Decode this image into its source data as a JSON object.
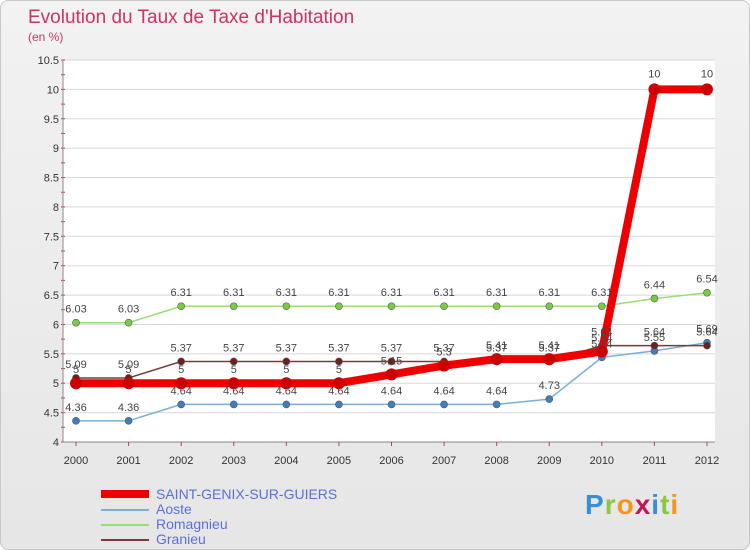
{
  "title": "Evolution du Taux de Taxe d'Habitation",
  "unit_label": "(en %)",
  "chart_data": {
    "type": "line",
    "title": "Evolution du Taux de Taxe d'Habitation",
    "ylabel": "(en %)",
    "ylim": [
      4,
      10.5
    ],
    "yticks": [
      "4",
      "4.5",
      "5",
      "5.5",
      "6",
      "6.5",
      "7",
      "7.5",
      "8",
      "8.5",
      "9",
      "9.5",
      "10",
      "10.5"
    ],
    "categories": [
      "2000",
      "2001",
      "2002",
      "2003",
      "2004",
      "2005",
      "2006",
      "2007",
      "2008",
      "2009",
      "2010",
      "2011",
      "2012"
    ],
    "series": [
      {
        "name": "SAINT-GENIX-SUR-GUIERS",
        "color": "#ee0000",
        "dot": "#cc0000",
        "values": [
          5,
          5,
          5,
          5,
          5,
          5,
          5.15,
          5.3,
          5.41,
          5.41,
          5.54,
          10,
          10
        ],
        "labels": [
          "5",
          "5",
          "5",
          "5",
          "5",
          "5",
          "5.15",
          "5.3",
          "5.41",
          "5.41",
          "5.54",
          "10",
          "10"
        ]
      },
      {
        "name": "Aoste",
        "color": "#7aaed6",
        "dot": "#3f7fc0",
        "values": [
          4.36,
          4.36,
          4.64,
          4.64,
          4.64,
          4.64,
          4.64,
          4.64,
          4.64,
          4.73,
          5.44,
          5.55,
          5.69
        ],
        "labels": [
          "4.36",
          "4.36",
          "4.64",
          "4.64",
          "4.64",
          "4.64",
          "4.64",
          "4.64",
          "4.64",
          "4.73",
          "5.44",
          "5.55",
          "5.69"
        ]
      },
      {
        "name": "Romagnieu",
        "color": "#99dd77",
        "dot": "#77cc44",
        "values": [
          6.03,
          6.03,
          6.31,
          6.31,
          6.31,
          6.31,
          6.31,
          6.31,
          6.31,
          6.31,
          6.31,
          6.44,
          6.54
        ],
        "labels": [
          "6.03",
          "6.03",
          "6.31",
          "6.31",
          "6.31",
          "6.31",
          "6.31",
          "6.31",
          "6.31",
          "6.31",
          "6.31",
          "6.44",
          "6.54"
        ]
      },
      {
        "name": "Granieu",
        "color": "#7a3a3a",
        "dot": "#6b2020",
        "values": [
          5.09,
          5.09,
          5.37,
          5.37,
          5.37,
          5.37,
          5.37,
          5.37,
          5.37,
          5.37,
          5.64,
          5.64,
          5.64
        ],
        "labels": [
          "5.09",
          "5.09",
          "5.37",
          "5.37",
          "5.37",
          "5.37",
          "5.37",
          "5.37",
          "5.37",
          "5.37",
          "5.64",
          "5.64",
          "5.64"
        ]
      }
    ],
    "legend_position": "bottom-left"
  },
  "legend": [
    {
      "name": "SAINT-GENIX-SUR-GUIERS",
      "color": "#ee0000"
    },
    {
      "name": "Aoste",
      "color": "#7aaed6"
    },
    {
      "name": "Romagnieu",
      "color": "#99dd77"
    },
    {
      "name": "Granieu",
      "color": "#7a3a3a"
    }
  ],
  "logo": {
    "text": "Proxiti",
    "p": "P",
    "r": "r",
    "o": "o",
    "x": "x",
    "i": "i",
    "t": "t",
    "i2": "i"
  }
}
